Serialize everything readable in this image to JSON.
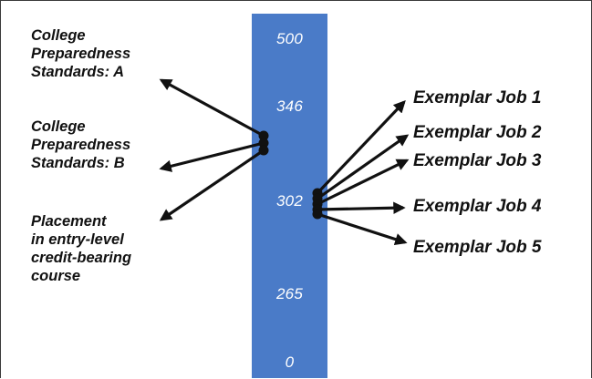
{
  "scale": {
    "labels": [
      "500",
      "346",
      "302",
      "265",
      "0"
    ]
  },
  "left_labels": [
    {
      "lines": [
        "College",
        "Preparedness",
        "Standards: A"
      ]
    },
    {
      "lines": [
        "College",
        "Preparedness",
        "Standards: B"
      ]
    },
    {
      "lines": [
        "Placement",
        "in entry-level",
        "credit-bearing",
        "course"
      ]
    }
  ],
  "jobs": [
    {
      "label": "Exemplar Job 1"
    },
    {
      "label": "Exemplar Job 2"
    },
    {
      "label": "Exemplar Job 3"
    },
    {
      "label": "Exemplar Job 4"
    },
    {
      "label": "Exemplar Job 5"
    }
  ],
  "colors": {
    "bar": "#4a7bc8",
    "arrow": "#111111",
    "scale_text": "#ffffff"
  }
}
